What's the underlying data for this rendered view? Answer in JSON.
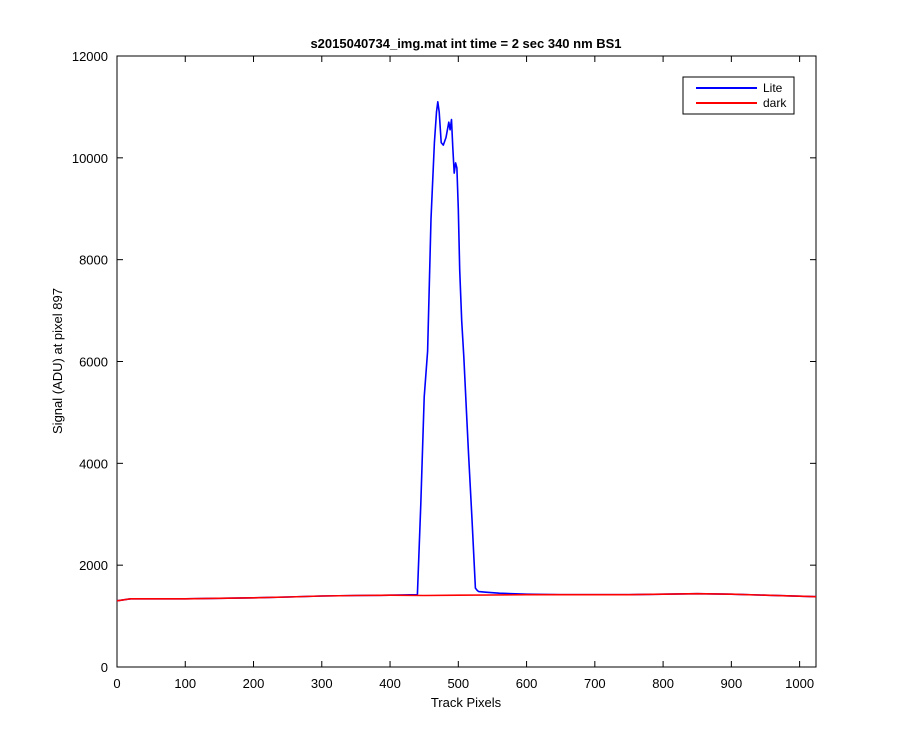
{
  "chart_data": {
    "type": "line",
    "title": "s2015040734_img.mat int time = 2 sec  340 nm BS1",
    "xlabel": "Track Pixels",
    "ylabel": "Signal (ADU) at pixel 897",
    "xlim": [
      0,
      1024
    ],
    "ylim": [
      0,
      12000
    ],
    "xticks": [
      0,
      100,
      200,
      300,
      400,
      500,
      600,
      700,
      800,
      900,
      1000
    ],
    "yticks": [
      0,
      2000,
      4000,
      6000,
      8000,
      10000,
      12000
    ],
    "grid": false,
    "legend_position": "top-right",
    "series": [
      {
        "name": "Lite",
        "color": "#0000ff",
        "x": [
          0,
          20,
          50,
          100,
          150,
          200,
          250,
          300,
          350,
          400,
          440,
          445,
          450,
          455,
          460,
          465,
          468,
          470,
          472,
          475,
          478,
          482,
          486,
          488,
          490,
          492,
          494,
          496,
          498,
          500,
          502,
          505,
          508,
          512,
          515,
          520,
          525,
          528,
          530,
          540,
          550,
          560,
          600,
          650,
          700,
          750,
          800,
          850,
          900,
          950,
          1000,
          1024
        ],
        "y": [
          1300,
          1340,
          1340,
          1340,
          1350,
          1360,
          1375,
          1395,
          1405,
          1410,
          1420,
          3200,
          5300,
          6200,
          8800,
          10300,
          10900,
          11100,
          10900,
          10300,
          10250,
          10400,
          10700,
          10550,
          10750,
          10200,
          9700,
          9900,
          9800,
          9000,
          7800,
          6800,
          6100,
          5000,
          4200,
          2900,
          1550,
          1500,
          1480,
          1470,
          1460,
          1450,
          1430,
          1420,
          1420,
          1420,
          1430,
          1440,
          1430,
          1410,
          1390,
          1380
        ]
      },
      {
        "name": "dark",
        "color": "#ff0000",
        "x": [
          0,
          20,
          50,
          100,
          150,
          200,
          250,
          300,
          350,
          400,
          450,
          500,
          550,
          600,
          650,
          700,
          750,
          800,
          850,
          900,
          950,
          1000,
          1024
        ],
        "y": [
          1300,
          1340,
          1340,
          1340,
          1350,
          1360,
          1375,
          1395,
          1405,
          1410,
          1405,
          1410,
          1415,
          1420,
          1420,
          1420,
          1420,
          1430,
          1440,
          1430,
          1410,
          1390,
          1380
        ]
      }
    ]
  }
}
